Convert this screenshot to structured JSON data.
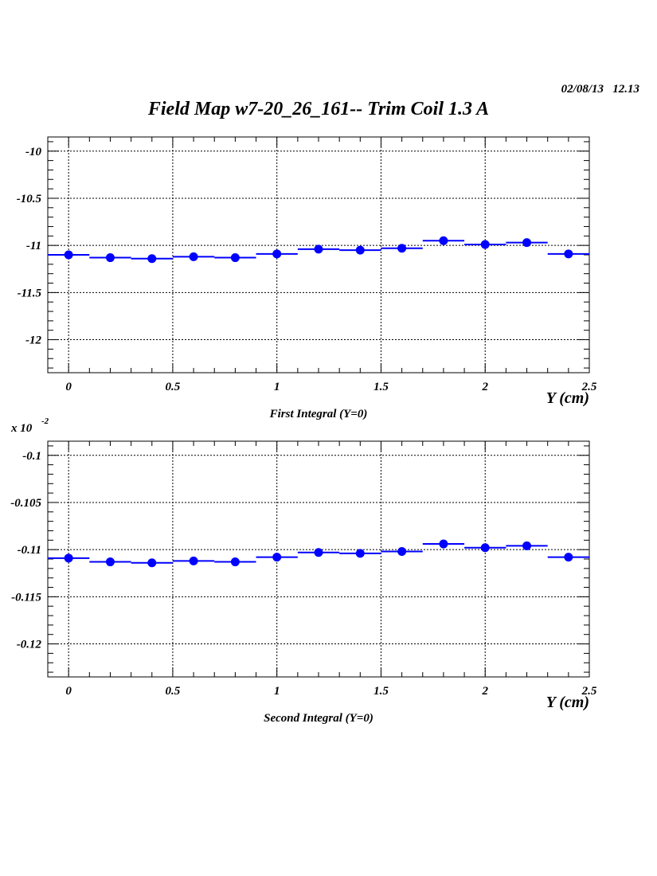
{
  "header": {
    "date": "02/08/13",
    "time": "12.13",
    "title": "Field Map w7-20_26_161-- Trim Coil 1.3 A"
  },
  "colors": {
    "marker": "#0000ff",
    "axis": "#000000",
    "grid": "#000000"
  },
  "chart_data": [
    {
      "type": "scatter",
      "title": "First Integral (Y=0)",
      "xlabel": "Y (cm)",
      "ylabel": "",
      "exponent": "",
      "xlim": [
        -0.1,
        2.5
      ],
      "ylim": [
        -12.35,
        -9.85
      ],
      "xticks": [
        0,
        0.5,
        1,
        1.5,
        2,
        2.5
      ],
      "xtick_labels": [
        "0",
        "0.5",
        "1",
        "1.5",
        "2",
        "2.5"
      ],
      "yticks": [
        -10,
        -10.5,
        -11,
        -11.5,
        -12
      ],
      "ytick_labels": [
        "-10",
        "-10.5",
        "-11",
        "-11.5",
        "-12"
      ],
      "grid": true,
      "series": [
        {
          "x": [
            0,
            0.2,
            0.4,
            0.6,
            0.8,
            1.0,
            1.2,
            1.4,
            1.6,
            1.8,
            2.0,
            2.2,
            2.4
          ],
          "y": [
            -11.1,
            -11.13,
            -11.14,
            -11.12,
            -11.13,
            -11.09,
            -11.04,
            -11.05,
            -11.03,
            -10.95,
            -10.99,
            -10.97,
            -11.09
          ],
          "x_halfwidth": 0.1
        }
      ]
    },
    {
      "type": "scatter",
      "title": "Second Integral (Y=0)",
      "xlabel": "Y (cm)",
      "ylabel": "",
      "exponent": "x 10",
      "exponent_power": "-2",
      "xlim": [
        -0.1,
        2.5
      ],
      "ylim": [
        -0.1235,
        -0.0985
      ],
      "xticks": [
        0,
        0.5,
        1,
        1.5,
        2,
        2.5
      ],
      "xtick_labels": [
        "0",
        "0.5",
        "1",
        "1.5",
        "2",
        "2.5"
      ],
      "yticks": [
        -0.1,
        -0.105,
        -0.11,
        -0.115,
        -0.12
      ],
      "ytick_labels": [
        "-0.1",
        "-0.105",
        "-0.11",
        "-0.115",
        "-0.12"
      ],
      "grid": true,
      "series": [
        {
          "x": [
            0,
            0.2,
            0.4,
            0.6,
            0.8,
            1.0,
            1.2,
            1.4,
            1.6,
            1.8,
            2.0,
            2.2,
            2.4
          ],
          "y": [
            -0.1109,
            -0.1113,
            -0.1114,
            -0.1112,
            -0.1113,
            -0.1108,
            -0.1103,
            -0.1104,
            -0.1102,
            -0.1094,
            -0.1098,
            -0.1096,
            -0.1108
          ],
          "x_halfwidth": 0.1
        }
      ]
    }
  ]
}
